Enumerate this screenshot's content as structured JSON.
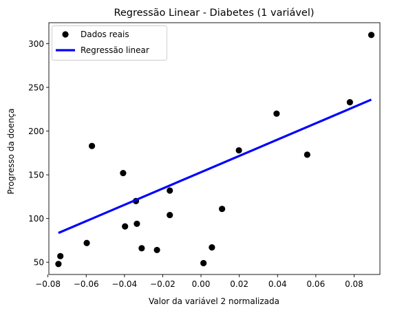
{
  "chart_data": {
    "type": "scatter",
    "title": "Regressão Linear - Diabetes (1 variável)",
    "xlabel": "Valor da variável 2 normalizada",
    "ylabel": "Progresso da doença",
    "xlim": [
      -0.0795,
      0.0935
    ],
    "ylim": [
      36,
      324
    ],
    "xticks": [
      -0.08,
      -0.06,
      -0.04,
      -0.02,
      0.0,
      0.02,
      0.04,
      0.06,
      0.08
    ],
    "xtick_labels": [
      "−0.08",
      "−0.06",
      "−0.04",
      "−0.02",
      "0.00",
      "0.02",
      "0.04",
      "0.06",
      "0.08"
    ],
    "yticks": [
      50,
      100,
      150,
      200,
      250,
      300
    ],
    "ytick_labels": [
      "50",
      "100",
      "150",
      "200",
      "250",
      "300"
    ],
    "grid": false,
    "legend_position": "top-left",
    "series": [
      {
        "name": "Dados reais",
        "kind": "scatter",
        "color": "#000000",
        "points": [
          [
            -0.0745,
            48
          ],
          [
            -0.0735,
            57
          ],
          [
            -0.0597,
            72
          ],
          [
            -0.057,
            183
          ],
          [
            -0.0407,
            152
          ],
          [
            -0.0397,
            91
          ],
          [
            -0.034,
            120
          ],
          [
            -0.0335,
            94
          ],
          [
            -0.031,
            66
          ],
          [
            -0.023,
            64
          ],
          [
            -0.0163,
            132
          ],
          [
            -0.0163,
            104
          ],
          [
            0.0013,
            49
          ],
          [
            0.0057,
            67
          ],
          [
            0.011,
            111
          ],
          [
            0.0198,
            178
          ],
          [
            0.0395,
            220
          ],
          [
            0.0555,
            173
          ],
          [
            0.0778,
            233
          ],
          [
            0.089,
            310
          ]
        ]
      },
      {
        "name": "Regressão linear",
        "kind": "line",
        "color": "#0000ff",
        "points": [
          [
            -0.0745,
            83.5
          ],
          [
            0.089,
            236
          ]
        ]
      }
    ]
  }
}
